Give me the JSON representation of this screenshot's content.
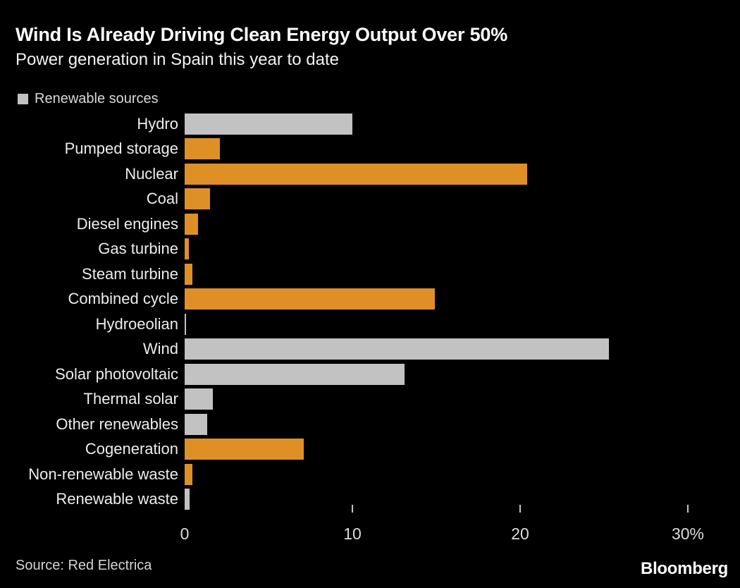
{
  "header": {
    "title": "Wind Is Already Driving Clean Energy Output Over 50%",
    "subtitle": "Power generation in Spain this year to date"
  },
  "legend": {
    "label": "Renewable sources"
  },
  "colors": {
    "background": "#000000",
    "renewable": "#c2c2c2",
    "non_renewable": "#de9027",
    "tick": "#c6c6c6"
  },
  "chart_data": {
    "type": "bar",
    "orientation": "horizontal",
    "title": "Wind Is Already Driving Clean Energy Output Over 50%",
    "subtitle": "Power generation in Spain this year to date",
    "unit": "%",
    "xlabel": "",
    "ylabel": "",
    "xlim": [
      0,
      33
    ],
    "grid": false,
    "legend_position": "top-left",
    "legend_entries": [
      {
        "label": "Renewable sources",
        "color": "#c2c2c2"
      }
    ],
    "categories": [
      "Hydro",
      "Pumped storage",
      "Nuclear",
      "Coal",
      "Diesel engines",
      "Gas turbine",
      "Steam turbine",
      "Combined cycle",
      "Hydroeolian",
      "Wind",
      "Solar photovoltaic",
      "Thermal solar",
      "Other renewables",
      "Cogeneration",
      "Non-renewable waste",
      "Renewable waste"
    ],
    "values": [
      10.0,
      2.1,
      20.4,
      1.5,
      0.8,
      0.25,
      0.45,
      14.9,
      0.1,
      25.3,
      13.1,
      1.7,
      1.35,
      7.1,
      0.45,
      0.3
    ],
    "renewable_flags": [
      true,
      false,
      false,
      false,
      false,
      false,
      false,
      false,
      true,
      true,
      true,
      true,
      true,
      false,
      false,
      true
    ],
    "x_ticks": [
      {
        "value": 0,
        "label": "0",
        "has_mark": false
      },
      {
        "value": 10,
        "label": "10",
        "has_mark": true
      },
      {
        "value": 20,
        "label": "20",
        "has_mark": true
      },
      {
        "value": 30,
        "label": "30%",
        "has_mark": true
      }
    ]
  },
  "footer": {
    "source": "Source: Red Electrica",
    "brand": "Bloomberg"
  }
}
